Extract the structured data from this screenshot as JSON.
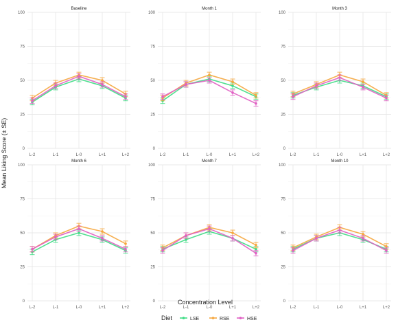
{
  "figure": {
    "ylabel": "Mean Liking Score (± SE)",
    "xlabel": "Concentration Level",
    "legend_title": "Diet",
    "legend_position": "bottom"
  },
  "colors": {
    "LSE": "#3ddc84",
    "RSE": "#f5a63d",
    "HSE": "#e05fc3"
  },
  "chart_data": [
    {
      "type": "line",
      "title": "Baseline",
      "categories": [
        "L-2",
        "L-1",
        "L-0",
        "L+1",
        "L+2"
      ],
      "ylim": [
        0,
        100
      ],
      "yticks": [
        0,
        25,
        50,
        75,
        100
      ],
      "grid": true,
      "series": [
        {
          "name": "LSE",
          "values": [
            34,
            45,
            51,
            46,
            37
          ],
          "se": [
            2,
            2,
            2,
            2,
            2
          ]
        },
        {
          "name": "RSE",
          "values": [
            37,
            48,
            54,
            50,
            40
          ],
          "se": [
            2,
            2,
            2,
            2,
            2
          ]
        },
        {
          "name": "HSE",
          "values": [
            35,
            46,
            53,
            47,
            38
          ],
          "se": [
            2,
            2,
            2,
            2,
            2
          ]
        }
      ]
    },
    {
      "type": "line",
      "title": "Month 1",
      "categories": [
        "L-2",
        "L-1",
        "L-0",
        "L+1",
        "L+2"
      ],
      "ylim": [
        0,
        100
      ],
      "yticks": [
        0,
        25,
        50,
        75,
        100
      ],
      "grid": true,
      "series": [
        {
          "name": "LSE",
          "values": [
            35,
            47,
            51,
            46,
            38
          ],
          "se": [
            2,
            2,
            2,
            2,
            2
          ]
        },
        {
          "name": "RSE",
          "values": [
            37,
            48,
            54,
            49,
            39
          ],
          "se": [
            2,
            2,
            2,
            2,
            2
          ]
        },
        {
          "name": "HSE",
          "values": [
            38,
            47,
            50,
            41,
            33
          ],
          "se": [
            2,
            2,
            2,
            2,
            2
          ]
        }
      ]
    },
    {
      "type": "line",
      "title": "Month 3",
      "categories": [
        "L-2",
        "L-1",
        "L-0",
        "L+1",
        "L+2"
      ],
      "ylim": [
        0,
        100
      ],
      "yticks": [
        0,
        25,
        50,
        75,
        100
      ],
      "grid": true,
      "series": [
        {
          "name": "LSE",
          "values": [
            39,
            45,
            50,
            46,
            38
          ],
          "se": [
            2,
            2,
            2,
            2,
            2
          ]
        },
        {
          "name": "RSE",
          "values": [
            40,
            47,
            54,
            49,
            39
          ],
          "se": [
            2,
            2,
            2,
            2,
            2
          ]
        },
        {
          "name": "HSE",
          "values": [
            38,
            46,
            52,
            45,
            37
          ],
          "se": [
            2,
            2,
            2,
            2,
            2
          ]
        }
      ]
    },
    {
      "type": "line",
      "title": "Month 6",
      "categories": [
        "L-2",
        "L-1",
        "L-0",
        "L+1",
        "L+2"
      ],
      "ylim": [
        0,
        100
      ],
      "yticks": [
        0,
        25,
        50,
        75,
        100
      ],
      "grid": true,
      "series": [
        {
          "name": "LSE",
          "values": [
            36,
            45,
            50,
            45,
            37
          ],
          "se": [
            2,
            2,
            2,
            2,
            2
          ]
        },
        {
          "name": "RSE",
          "values": [
            38,
            48,
            55,
            51,
            42
          ],
          "se": [
            2,
            2,
            2,
            2,
            2
          ]
        },
        {
          "name": "HSE",
          "values": [
            38,
            47,
            53,
            46,
            38
          ],
          "se": [
            2,
            2,
            2,
            2,
            2
          ]
        }
      ]
    },
    {
      "type": "line",
      "title": "Month 7",
      "categories": [
        "L-2",
        "L-1",
        "L-0",
        "L+1",
        "L+2"
      ],
      "ylim": [
        0,
        100
      ],
      "yticks": [
        0,
        25,
        50,
        75,
        100
      ],
      "grid": true,
      "series": [
        {
          "name": "LSE",
          "values": [
            38,
            45,
            51,
            46,
            38
          ],
          "se": [
            2,
            2,
            2,
            2,
            2
          ]
        },
        {
          "name": "RSE",
          "values": [
            39,
            48,
            54,
            50,
            41
          ],
          "se": [
            2,
            2,
            2,
            2,
            2
          ]
        },
        {
          "name": "HSE",
          "values": [
            37,
            48,
            53,
            46,
            35
          ],
          "se": [
            2,
            2,
            2,
            2,
            2
          ]
        }
      ]
    },
    {
      "type": "line",
      "title": "Month 10",
      "categories": [
        "L-2",
        "L-1",
        "L-0",
        "L+1",
        "L+2"
      ],
      "ylim": [
        0,
        100
      ],
      "yticks": [
        0,
        25,
        50,
        75,
        100
      ],
      "grid": true,
      "series": [
        {
          "name": "LSE",
          "values": [
            38,
            46,
            50,
            45,
            38
          ],
          "se": [
            2,
            2,
            2,
            2,
            2
          ]
        },
        {
          "name": "RSE",
          "values": [
            39,
            47,
            54,
            49,
            40
          ],
          "se": [
            2,
            2,
            2,
            2,
            2
          ]
        },
        {
          "name": "HSE",
          "values": [
            37,
            46,
            52,
            46,
            37
          ],
          "se": [
            2,
            2,
            2,
            2,
            2
          ]
        }
      ]
    }
  ]
}
